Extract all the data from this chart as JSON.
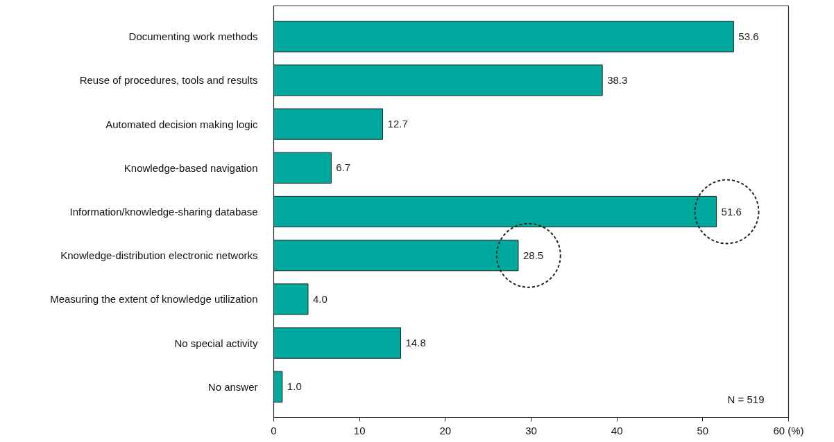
{
  "chart_data": {
    "type": "bar",
    "orientation": "horizontal",
    "categories": [
      "Documenting work methods",
      "Reuse of procedures, tools and results",
      "Automated decision making logic",
      "Knowledge-based navigation",
      "Information/knowledge-sharing database",
      "Knowledge-distribution electronic networks",
      "Measuring the extent of knowledge utilization",
      "No special activity",
      "No answer"
    ],
    "values": [
      53.6,
      38.3,
      12.7,
      6.7,
      51.6,
      28.5,
      4.0,
      14.8,
      1.0
    ],
    "value_labels": [
      "53.6",
      "38.3",
      "12.7",
      "6.7",
      "51.6",
      "28.5",
      "4.0",
      "14.8",
      "1.0"
    ],
    "color": "#00a99d",
    "xlim": [
      0,
      60
    ],
    "xticks": [
      0,
      10,
      20,
      30,
      40,
      50,
      {
        "value": 60,
        "label": "60 (%)"
      }
    ],
    "annotations": [
      "N = 519"
    ]
  }
}
